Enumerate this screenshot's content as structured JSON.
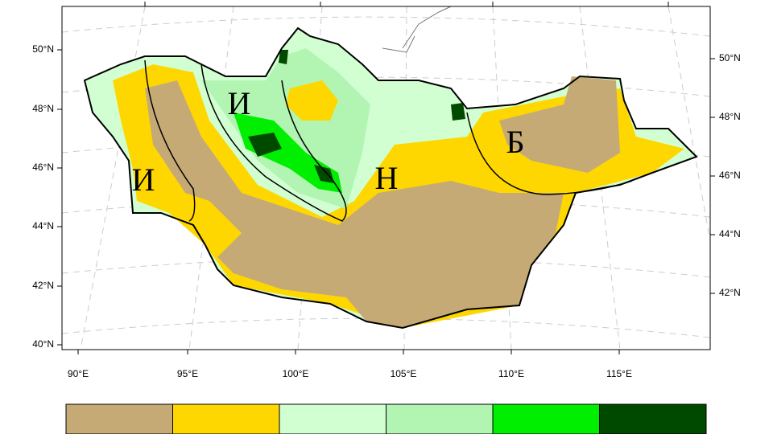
{
  "map": {
    "lat_labels_left": [
      "50°N",
      "48°N",
      "46°N",
      "44°N",
      "42°N",
      "40°N"
    ],
    "lat_labels_right": [
      "50°N",
      "48°N",
      "46°N",
      "44°N",
      "42°N"
    ],
    "lon_labels": [
      "90°E",
      "95°E",
      "100°E",
      "105°E",
      "110°E",
      "115°E"
    ],
    "regions": [
      "И",
      "И",
      "Н",
      "Б"
    ]
  },
  "colorbar": {
    "colors": [
      "#c6aa76",
      "#ffd700",
      "#d2ffd2",
      "#b2f5b2",
      "#00ee00",
      "#004a00"
    ]
  }
}
